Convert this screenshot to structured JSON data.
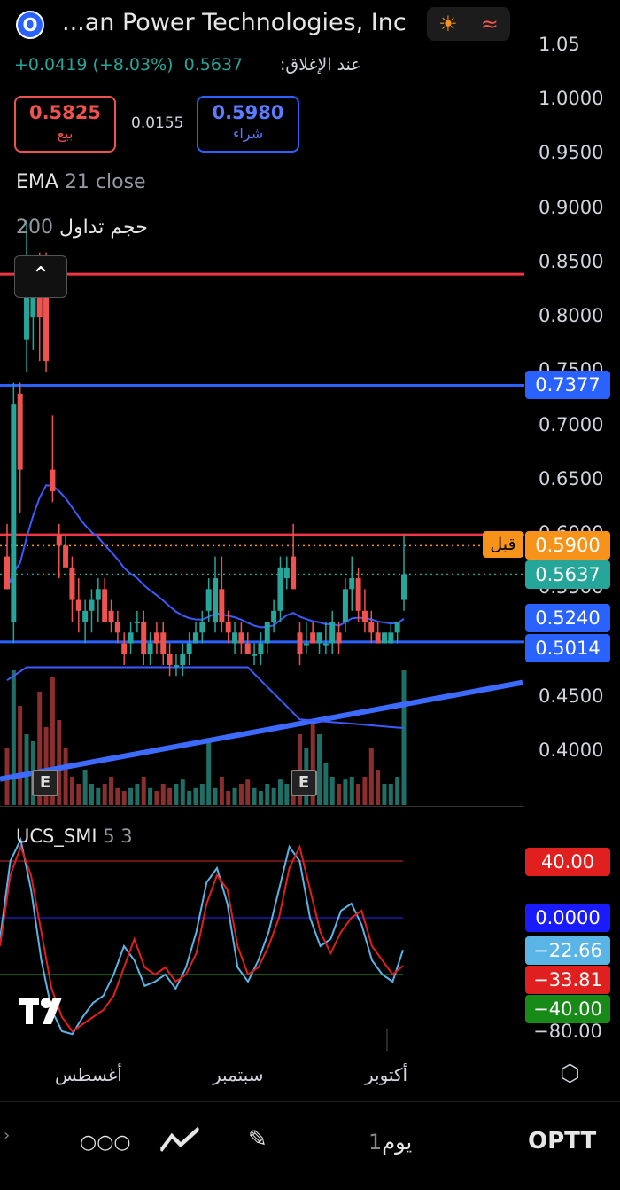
{
  "header": {
    "logo_letter": "O",
    "title": "...an Power Technologies, Inc",
    "icons": [
      "sun-icon",
      "waves-icon"
    ],
    "change": "+0.0419 (+8.03%)",
    "close_value": "0.5637",
    "close_label": "عند الإغلاق:"
  },
  "quote": {
    "sell_value": "0.5825",
    "sell_label": "بيع",
    "spread": "0.0155",
    "buy_value": "0.5980",
    "buy_label": "شراء"
  },
  "indicators": {
    "ema_name": "EMA",
    "ema_params": "21 close",
    "volume_length": "200",
    "volume_label": "حجم تداول",
    "smi_name": "UCS_SMI",
    "smi_params": "5 3"
  },
  "price_axis": [
    "1.05",
    "1.0000",
    "0.9500",
    "0.9000",
    "0.8500",
    "0.8000",
    "0.7500",
    "0.7000",
    "0.6500",
    "0.6000",
    "0.5500",
    "0.4500",
    "0.4000"
  ],
  "price_tags": [
    {
      "value": "0.7377",
      "color": "#2962ff"
    },
    {
      "value": "0.5900",
      "color": "#f7931a"
    },
    {
      "value": "0.5637",
      "color": "#26a69a"
    },
    {
      "value": "0.5240",
      "color": "#2962ff"
    },
    {
      "value": "0.5014",
      "color": "#2962ff"
    }
  ],
  "before_label": "قبل",
  "earnings_marker": "E",
  "smi_tags": [
    {
      "value": "40.00",
      "color": "#e01f1f"
    },
    {
      "value": "0.0000",
      "color": "#1a1aff"
    },
    {
      "value": "−22.66",
      "color": "#5ab4e6"
    },
    {
      "value": "−33.81",
      "color": "#e01f1f"
    },
    {
      "value": "−40.00",
      "color": "#178a17"
    },
    {
      "value": "−80.00",
      "color": ""
    }
  ],
  "time_axis": [
    "أغسطس",
    "سبتمبر",
    "أكتوبر"
  ],
  "toolbar": {
    "symbol": "OPTT",
    "interval_num": "1",
    "interval_label": "يوم"
  },
  "colors": {
    "up": "#26a69a",
    "down": "#ef5350",
    "ema": "#3d5afe",
    "support": "#2962ff",
    "resistance": "#f23645"
  },
  "chart_data": {
    "type": "candlestick",
    "price_range": [
      0.36,
      1.07
    ],
    "horizontal_lines": {
      "resistance": [
        0.84,
        0.6
      ],
      "support": [
        0.7377,
        0.5014
      ]
    },
    "last_price": 0.5637,
    "candles": [
      {
        "o": 0.58,
        "h": 0.61,
        "l": 0.55,
        "c": 0.55
      },
      {
        "o": 0.52,
        "h": 0.74,
        "l": 0.5,
        "c": 0.72
      },
      {
        "o": 0.73,
        "h": 0.74,
        "l": 0.62,
        "c": 0.66
      },
      {
        "o": 0.78,
        "h": 0.89,
        "l": 0.75,
        "c": 0.83
      },
      {
        "o": 0.8,
        "h": 0.85,
        "l": 0.77,
        "c": 0.82
      },
      {
        "o": 0.84,
        "h": 0.86,
        "l": 0.76,
        "c": 0.8
      },
      {
        "o": 0.84,
        "h": 0.86,
        "l": 0.75,
        "c": 0.76
      },
      {
        "o": 0.66,
        "h": 0.71,
        "l": 0.63,
        "c": 0.64
      },
      {
        "o": 0.6,
        "h": 0.61,
        "l": 0.56,
        "c": 0.59
      },
      {
        "o": 0.59,
        "h": 0.6,
        "l": 0.57,
        "c": 0.57
      },
      {
        "o": 0.57,
        "h": 0.58,
        "l": 0.52,
        "c": 0.54
      },
      {
        "o": 0.54,
        "h": 0.56,
        "l": 0.51,
        "c": 0.53
      },
      {
        "o": 0.52,
        "h": 0.54,
        "l": 0.5,
        "c": 0.53
      },
      {
        "o": 0.53,
        "h": 0.55,
        "l": 0.51,
        "c": 0.54
      },
      {
        "o": 0.54,
        "h": 0.56,
        "l": 0.52,
        "c": 0.55
      },
      {
        "o": 0.55,
        "h": 0.56,
        "l": 0.52,
        "c": 0.52
      },
      {
        "o": 0.53,
        "h": 0.54,
        "l": 0.51,
        "c": 0.52
      },
      {
        "o": 0.52,
        "h": 0.53,
        "l": 0.5,
        "c": 0.51
      },
      {
        "o": 0.5,
        "h": 0.51,
        "l": 0.48,
        "c": 0.49
      },
      {
        "o": 0.5,
        "h": 0.52,
        "l": 0.49,
        "c": 0.51
      },
      {
        "o": 0.52,
        "h": 0.53,
        "l": 0.51,
        "c": 0.52
      },
      {
        "o": 0.52,
        "h": 0.53,
        "l": 0.48,
        "c": 0.49
      },
      {
        "o": 0.49,
        "h": 0.51,
        "l": 0.48,
        "c": 0.5
      },
      {
        "o": 0.51,
        "h": 0.52,
        "l": 0.49,
        "c": 0.5
      },
      {
        "o": 0.51,
        "h": 0.52,
        "l": 0.48,
        "c": 0.49
      },
      {
        "o": 0.49,
        "h": 0.5,
        "l": 0.47,
        "c": 0.48
      },
      {
        "o": 0.48,
        "h": 0.49,
        "l": 0.47,
        "c": 0.48
      },
      {
        "o": 0.48,
        "h": 0.5,
        "l": 0.47,
        "c": 0.49
      },
      {
        "o": 0.49,
        "h": 0.51,
        "l": 0.48,
        "c": 0.5
      },
      {
        "o": 0.5,
        "h": 0.52,
        "l": 0.5,
        "c": 0.51
      },
      {
        "o": 0.51,
        "h": 0.53,
        "l": 0.5,
        "c": 0.52
      },
      {
        "o": 0.53,
        "h": 0.56,
        "l": 0.52,
        "c": 0.55
      },
      {
        "o": 0.52,
        "h": 0.58,
        "l": 0.51,
        "c": 0.56
      },
      {
        "o": 0.55,
        "h": 0.58,
        "l": 0.51,
        "c": 0.52
      },
      {
        "o": 0.52,
        "h": 0.53,
        "l": 0.5,
        "c": 0.51
      },
      {
        "o": 0.5,
        "h": 0.52,
        "l": 0.49,
        "c": 0.51
      },
      {
        "o": 0.51,
        "h": 0.52,
        "l": 0.49,
        "c": 0.5
      },
      {
        "o": 0.5,
        "h": 0.51,
        "l": 0.49,
        "c": 0.49
      },
      {
        "o": 0.49,
        "h": 0.5,
        "l": 0.48,
        "c": 0.49
      },
      {
        "o": 0.49,
        "h": 0.51,
        "l": 0.48,
        "c": 0.5
      },
      {
        "o": 0.5,
        "h": 0.52,
        "l": 0.49,
        "c": 0.52
      },
      {
        "o": 0.52,
        "h": 0.54,
        "l": 0.51,
        "c": 0.53
      },
      {
        "o": 0.53,
        "h": 0.58,
        "l": 0.52,
        "c": 0.57
      },
      {
        "o": 0.56,
        "h": 0.58,
        "l": 0.55,
        "c": 0.57
      },
      {
        "o": 0.58,
        "h": 0.61,
        "l": 0.55,
        "c": 0.55
      },
      {
        "o": 0.51,
        "h": 0.52,
        "l": 0.48,
        "c": 0.49
      },
      {
        "o": 0.5,
        "h": 0.52,
        "l": 0.49,
        "c": 0.5
      },
      {
        "o": 0.51,
        "h": 0.52,
        "l": 0.5,
        "c": 0.5
      },
      {
        "o": 0.5,
        "h": 0.51,
        "l": 0.49,
        "c": 0.51
      },
      {
        "o": 0.5,
        "h": 0.52,
        "l": 0.49,
        "c": 0.5
      },
      {
        "o": 0.5,
        "h": 0.53,
        "l": 0.49,
        "c": 0.52
      },
      {
        "o": 0.51,
        "h": 0.52,
        "l": 0.49,
        "c": 0.5
      },
      {
        "o": 0.52,
        "h": 0.56,
        "l": 0.51,
        "c": 0.55
      },
      {
        "o": 0.55,
        "h": 0.58,
        "l": 0.53,
        "c": 0.56
      },
      {
        "o": 0.56,
        "h": 0.57,
        "l": 0.52,
        "c": 0.53
      },
      {
        "o": 0.53,
        "h": 0.55,
        "l": 0.51,
        "c": 0.52
      },
      {
        "o": 0.52,
        "h": 0.53,
        "l": 0.5,
        "c": 0.51
      },
      {
        "o": 0.51,
        "h": 0.52,
        "l": 0.5,
        "c": 0.5
      },
      {
        "o": 0.5,
        "h": 0.51,
        "l": 0.5,
        "c": 0.51
      },
      {
        "o": 0.5,
        "h": 0.52,
        "l": 0.5,
        "c": 0.51
      },
      {
        "o": 0.51,
        "h": 0.52,
        "l": 0.5,
        "c": 0.52
      },
      {
        "o": 0.54,
        "h": 0.6,
        "l": 0.53,
        "c": 0.5637
      }
    ],
    "volume": [
      0.4,
      0.95,
      0.7,
      0.5,
      0.45,
      0.8,
      0.55,
      0.9,
      0.6,
      0.4,
      0.2,
      0.15,
      0.25,
      0.15,
      0.12,
      0.15,
      0.2,
      0.12,
      0.1,
      0.12,
      0.15,
      0.2,
      0.12,
      0.1,
      0.15,
      0.12,
      0.15,
      0.18,
      0.1,
      0.12,
      0.15,
      0.45,
      0.12,
      0.2,
      0.1,
      0.12,
      0.15,
      0.18,
      0.12,
      0.1,
      0.15,
      0.12,
      0.18,
      0.15,
      0.2,
      0.5,
      0.4,
      0.6,
      0.5,
      0.3,
      0.2,
      0.15,
      0.18,
      0.2,
      0.15,
      0.2,
      0.4,
      0.25,
      0.15,
      0.15,
      0.2,
      0.95
    ],
    "smi_range": [
      -90,
      55
    ],
    "smi_levels": [
      40,
      0,
      -40
    ],
    "smi_signal": [
      -20,
      30,
      50,
      30,
      -10,
      -50,
      -70,
      -80,
      -75,
      -70,
      -65,
      -55,
      -35,
      -15,
      -35,
      -40,
      -35,
      -45,
      -40,
      -25,
      10,
      30,
      20,
      -20,
      -40,
      -35,
      -20,
      0,
      35,
      50,
      20,
      -10,
      -25,
      -10,
      0,
      5,
      -20,
      -30,
      -40,
      -33.81
    ],
    "smi_line": [
      -15,
      40,
      55,
      20,
      -30,
      -65,
      -80,
      -82,
      -70,
      -60,
      -55,
      -40,
      -20,
      -30,
      -48,
      -45,
      -40,
      -50,
      -35,
      -10,
      25,
      35,
      10,
      -35,
      -45,
      -30,
      -10,
      20,
      50,
      40,
      0,
      -20,
      -15,
      5,
      10,
      -5,
      -30,
      -40,
      -45,
      -22.66
    ]
  }
}
